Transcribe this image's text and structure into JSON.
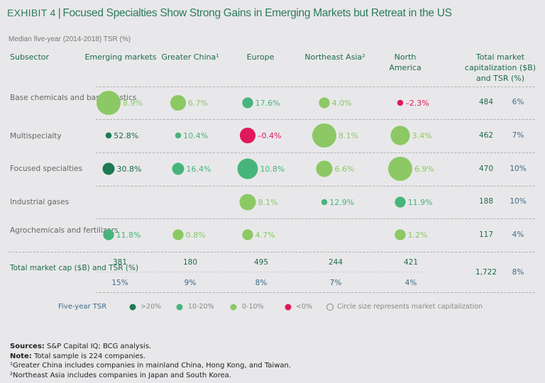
{
  "header": {
    "exhibit": "Exhibit 4",
    "title": "Focused Specialties Show Strong Gains in Emerging Markets but Retreat in the US",
    "subtitle": "Median five-year (2014-2018) TSR (%)"
  },
  "columns": {
    "subsector": "Subsector",
    "regions": [
      "Emerging markets",
      "Greater China¹",
      "Europe",
      "Northeast Asia²",
      "North America"
    ],
    "total": "Total market capitalization ($B) and TSR (%)"
  },
  "chart_data": {
    "type": "bubble-table",
    "title": "Exhibit 4 | Focused Specialties Show Strong Gains in Emerging Markets but Retreat in the US",
    "subtitle": "Median five-year (2014-2018) TSR (%)",
    "regions": [
      "Emerging markets",
      "Greater China",
      "Europe",
      "Northeast Asia",
      "North America"
    ],
    "rows": [
      {
        "subsector": "Base chemicals and basic plastics",
        "cells": [
          {
            "tsr": 8.9,
            "label": "8.9%",
            "size": 1.0
          },
          {
            "tsr": 6.7,
            "label": "6.7%",
            "size": 0.65
          },
          {
            "tsr": 17.6,
            "label": "17.6%",
            "size": 0.45
          },
          {
            "tsr": 4.0,
            "label": "4.0%",
            "size": 0.45
          },
          {
            "tsr": -2.3,
            "label": "–2.3%",
            "size": 0.25
          }
        ],
        "total_cap": "484",
        "total_tsr": "6%"
      },
      {
        "subsector": "Multispecialty",
        "cells": [
          {
            "tsr": 52.8,
            "label": "52.8%",
            "size": 0.25
          },
          {
            "tsr": 10.4,
            "label": "10.4%",
            "size": 0.25
          },
          {
            "tsr": -0.4,
            "label": "–0.4%",
            "size": 0.65
          },
          {
            "tsr": 8.1,
            "label": "8.1%",
            "size": 1.0
          },
          {
            "tsr": 3.4,
            "label": "3.4%",
            "size": 0.8
          }
        ],
        "total_cap": "462",
        "total_tsr": "7%"
      },
      {
        "subsector": "Focused specialties",
        "cells": [
          {
            "tsr": 30.8,
            "label": "30.8%",
            "size": 0.5
          },
          {
            "tsr": 16.4,
            "label": "16.4%",
            "size": 0.5
          },
          {
            "tsr": 10.8,
            "label": "10.8%",
            "size": 0.85
          },
          {
            "tsr": 6.6,
            "label": "6.6%",
            "size": 0.68
          },
          {
            "tsr": 6.9,
            "label": "6.9%",
            "size": 1.0
          }
        ],
        "total_cap": "470",
        "total_tsr": "10%"
      },
      {
        "subsector": "Industrial gases",
        "cells": [
          null,
          null,
          {
            "tsr": 8.1,
            "label": "8.1%",
            "size": 0.68
          },
          {
            "tsr": 12.9,
            "label": "12.9%",
            "size": 0.25
          },
          {
            "tsr": 11.9,
            "label": "11.9%",
            "size": 0.45
          }
        ],
        "total_cap": "188",
        "total_tsr": "10%"
      },
      {
        "subsector": "Agrochemicals and fertilizers",
        "cells": [
          {
            "tsr": 11.8,
            "label": "11.8%",
            "size": 0.45
          },
          {
            "tsr": 0.8,
            "label": "0.8%",
            "size": 0.45
          },
          {
            "tsr": 4.7,
            "label": "4.7%",
            "size": 0.45
          },
          null,
          {
            "tsr": 1.2,
            "label": "1.2%",
            "size": 0.45
          }
        ],
        "total_cap": "117",
        "total_tsr": "4%"
      }
    ],
    "totals": {
      "label": "Total market cap ($B) and TSR (%)",
      "caps": [
        "381",
        "180",
        "495",
        "244",
        "421"
      ],
      "tsrs": [
        "15%",
        "9%",
        "8%",
        "7%",
        "4%"
      ],
      "grand_cap": "1,722",
      "grand_tsr": "8%"
    },
    "legend": {
      "title": "Five-year TSR",
      "items": [
        {
          "label": ">20%",
          "color": "#1e7a52"
        },
        {
          "label": "10-20%",
          "color": "#47b57b"
        },
        {
          "label": "0-10%",
          "color": "#8cc864"
        },
        {
          "label": "<0%",
          "color": "#e0195a"
        }
      ],
      "size_note": "Circle size represents market capitalization"
    }
  },
  "colors": {
    "dark_green": "#1e7a52",
    "mid_green": "#47b57b",
    "light_green": "#8cc864",
    "red": "#e0195a",
    "text_green": "#1e6a4a",
    "text_blue": "#3e6a8a"
  },
  "footer": {
    "sources_label": "Sources:",
    "sources": "S&P Capital IQ; BCG analysis.",
    "note_label": "Note:",
    "note": "Total sample is 224 companies.",
    "fn1": "¹Greater China includes companies in mainland China, Hong Kong, and Taiwan.",
    "fn2": "²Northeast Asia includes companies in Japan and South Korea."
  }
}
